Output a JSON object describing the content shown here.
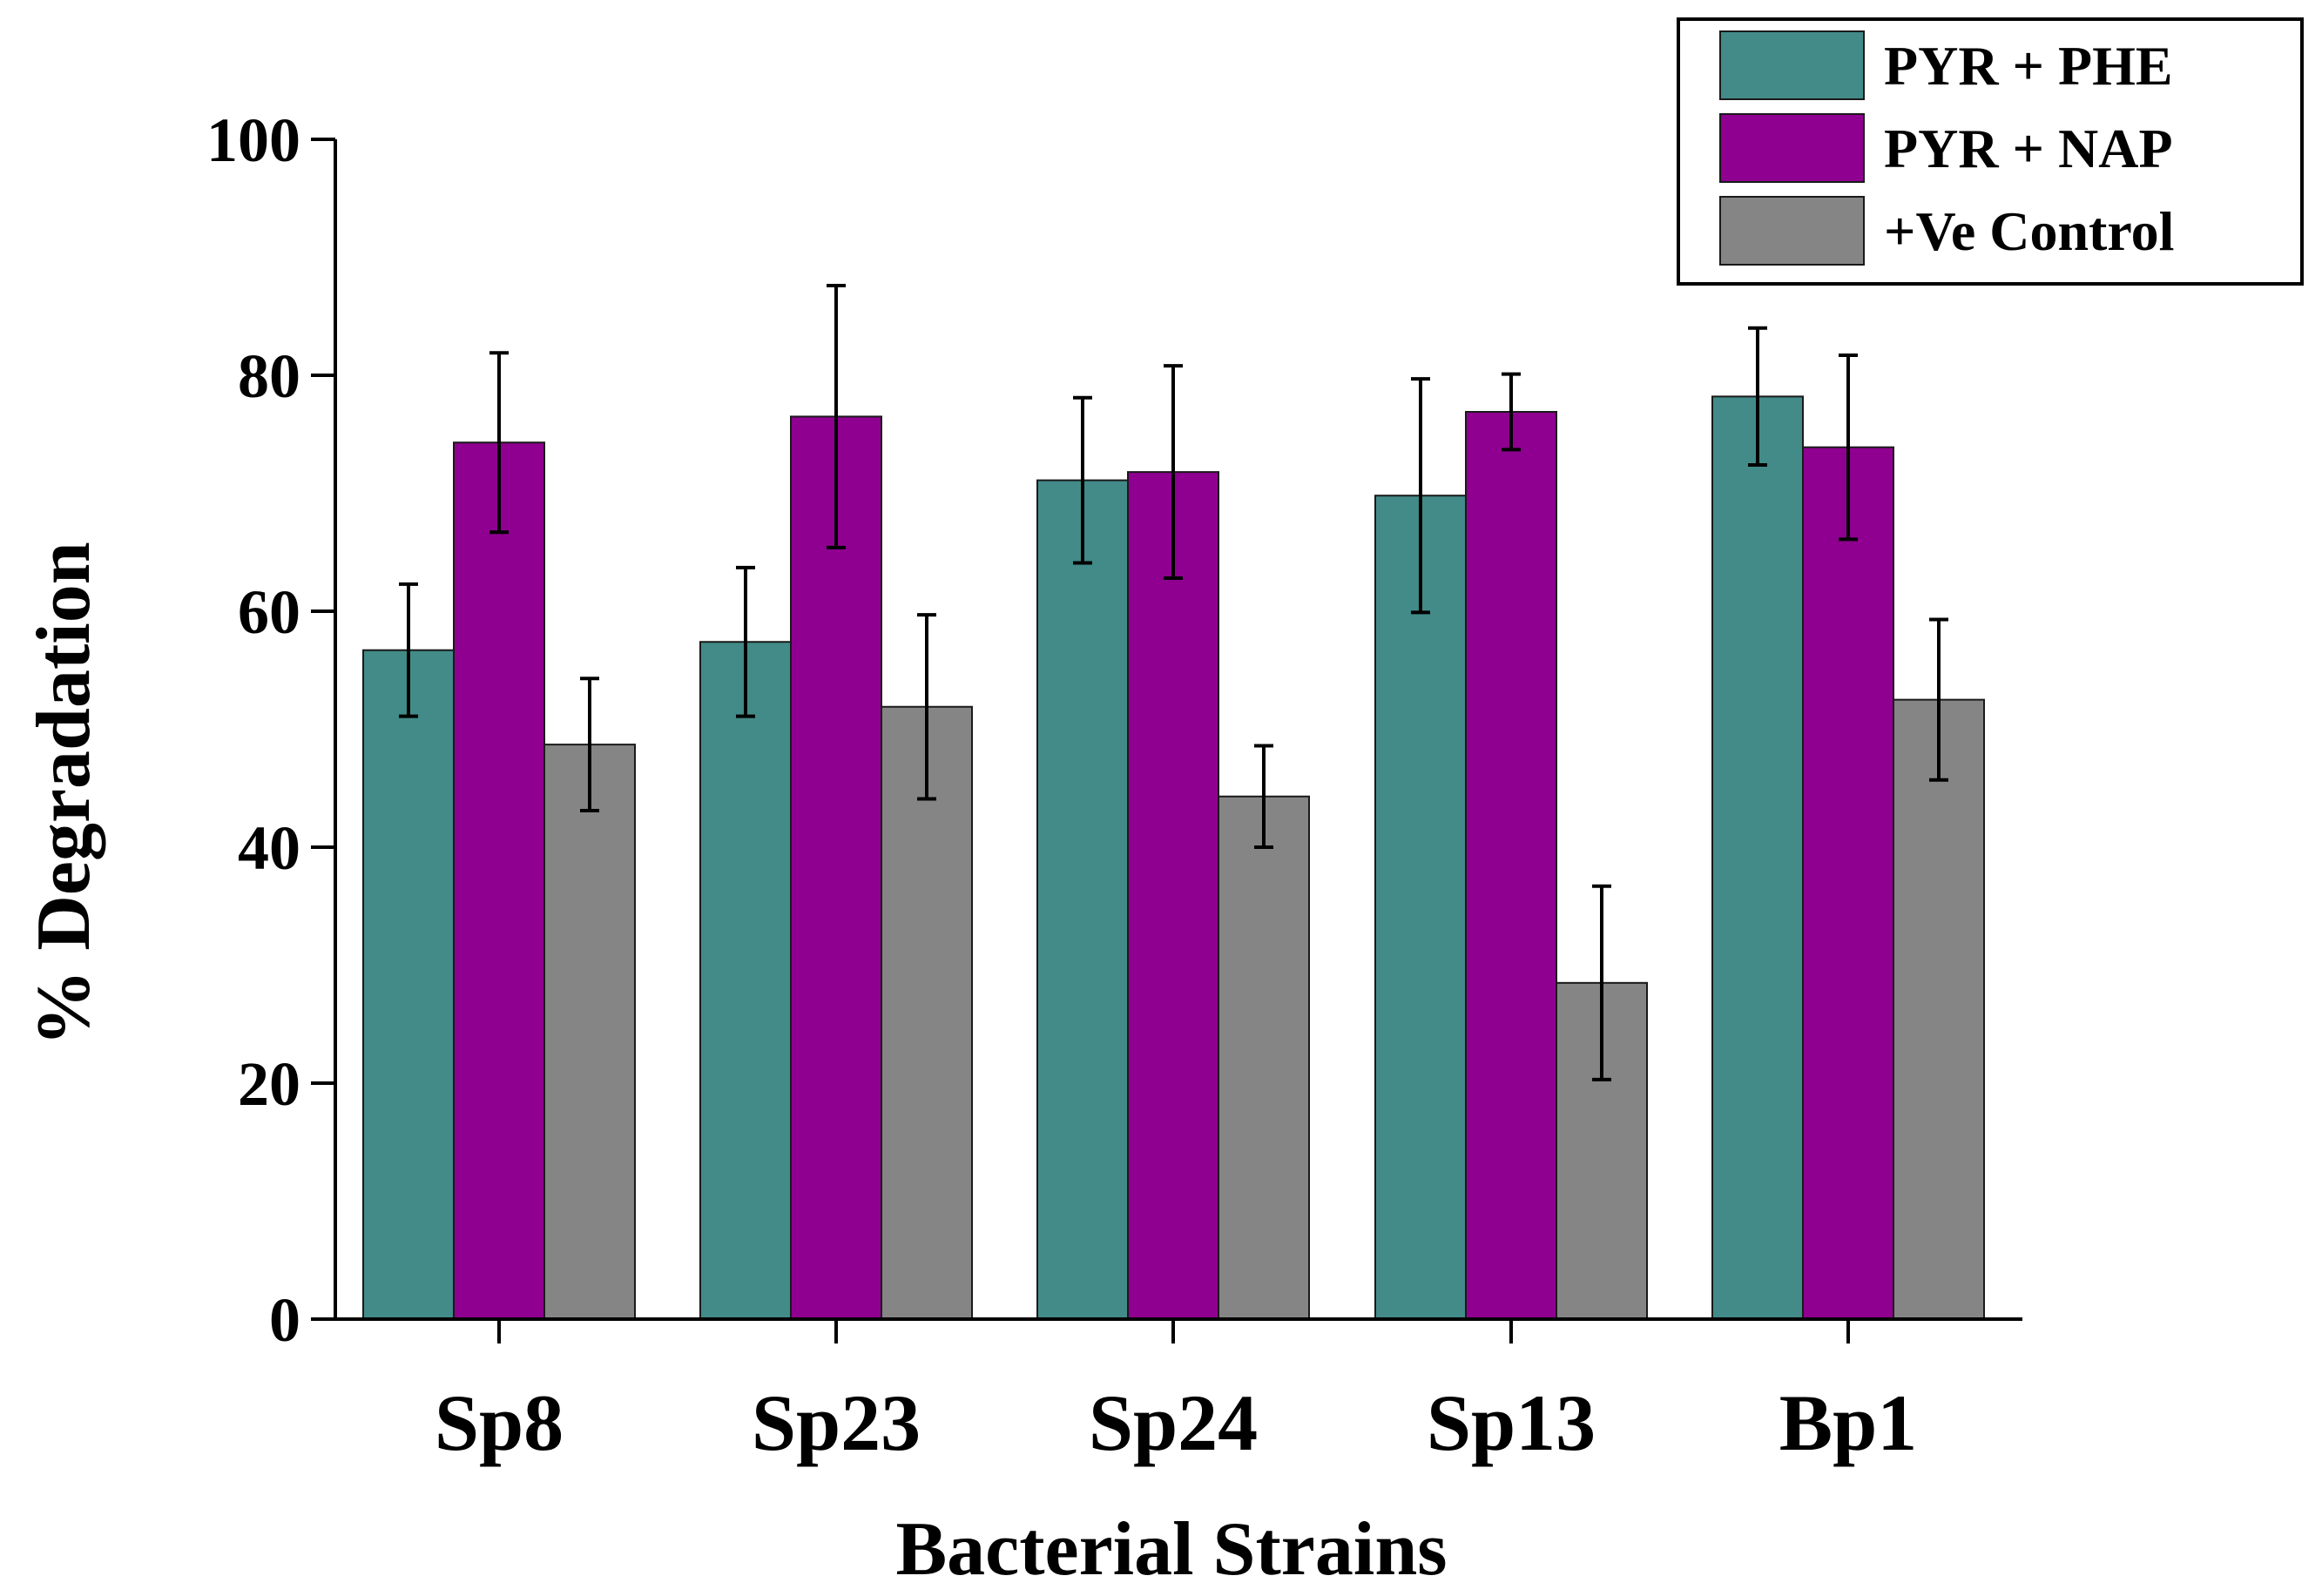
{
  "chart_data": {
    "type": "bar",
    "title": "",
    "xlabel": "Bacterial Strains",
    "ylabel": "% Degradation",
    "ylim": [
      0,
      100
    ],
    "yticks": [
      0,
      20,
      40,
      60,
      80,
      100
    ],
    "categories": [
      "Sp8",
      "Sp23",
      "Sp24",
      "Sp13",
      "Bp1"
    ],
    "series": [
      {
        "name": "PYR + PHE",
        "color": "#428B88",
        "values": [
          56.7,
          57.4,
          71.1,
          69.8,
          78.2
        ],
        "errors": [
          5.6,
          6.3,
          7.0,
          9.9,
          5.8
        ]
      },
      {
        "name": "PYR + NAP",
        "color": "#8F0090",
        "values": [
          74.3,
          76.5,
          71.8,
          76.9,
          73.9
        ],
        "errors": [
          7.6,
          11.1,
          9.0,
          3.2,
          7.8
        ]
      },
      {
        "name": "+Ve Control",
        "color": "#858585",
        "values": [
          48.7,
          51.9,
          44.3,
          28.5,
          52.5
        ],
        "errors": [
          5.6,
          7.8,
          4.3,
          8.2,
          6.8
        ]
      }
    ],
    "grid": false,
    "legend_position": "top-right",
    "error_bars": true
  }
}
